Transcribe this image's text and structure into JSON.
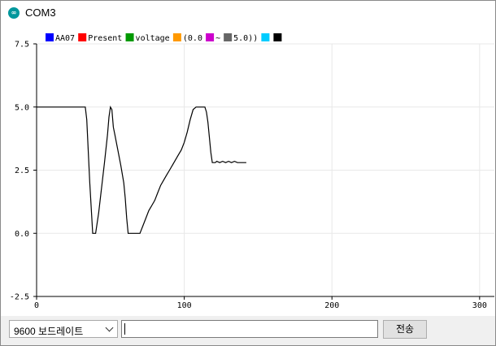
{
  "window": {
    "title": "COM3",
    "icon": "arduino-icon"
  },
  "plot": {
    "legend": [
      {
        "label": "AA07",
        "color": "#0000ff"
      },
      {
        "label": "Present",
        "color": "#ff0000"
      },
      {
        "label": "voltage",
        "color": "#009900"
      },
      {
        "label": "(0.0",
        "color": "#ff9900"
      },
      {
        "label": "~",
        "color": "#cc00cc"
      },
      {
        "label": "5.0))",
        "color": "#666666"
      },
      {
        "label": "",
        "color": "#00ccff"
      },
      {
        "label": "",
        "color": "#000000"
      }
    ],
    "y_ticks": [
      "7.5",
      "5.0",
      "2.5",
      "0.0",
      "-2.5"
    ],
    "x_ticks": [
      "0",
      "100",
      "200",
      "300"
    ]
  },
  "chart_data": {
    "type": "line",
    "xlim": [
      0,
      310
    ],
    "ylim": [
      -2.5,
      7.5
    ],
    "y_ticks": [
      7.5,
      5.0,
      2.5,
      0.0,
      -2.5
    ],
    "x_ticks": [
      0,
      100,
      200,
      300
    ],
    "grid": true,
    "legend_position": "top-left",
    "series": [
      {
        "color": "#000000",
        "x": [
          0,
          33,
          34,
          36,
          38,
          39,
          40,
          42,
          44,
          46,
          48,
          49,
          50,
          51,
          52,
          53,
          55,
          57,
          59,
          60,
          61,
          62,
          63,
          64,
          66,
          68,
          70,
          72,
          74,
          76,
          78,
          80,
          82,
          84,
          86,
          88,
          90,
          92,
          94,
          96,
          98,
          100,
          102,
          104,
          106,
          108,
          110,
          112,
          114,
          115,
          116,
          117,
          118,
          119,
          120,
          121,
          122,
          124,
          126,
          128,
          130,
          132,
          134,
          136,
          138,
          140,
          142
        ],
        "y": [
          5.0,
          5.0,
          4.5,
          2.0,
          0.0,
          0.0,
          0.0,
          0.8,
          1.8,
          2.8,
          3.9,
          4.6,
          5.0,
          4.9,
          4.2,
          3.9,
          3.3,
          2.7,
          2.0,
          1.4,
          0.6,
          0.0,
          0.0,
          0.0,
          0.0,
          0.0,
          0.0,
          0.3,
          0.6,
          0.9,
          1.1,
          1.3,
          1.6,
          1.9,
          2.1,
          2.3,
          2.5,
          2.7,
          2.9,
          3.1,
          3.3,
          3.6,
          4.0,
          4.5,
          4.9,
          5.0,
          5.0,
          5.0,
          5.0,
          4.8,
          4.4,
          3.8,
          3.2,
          2.8,
          2.8,
          2.8,
          2.85,
          2.8,
          2.85,
          2.8,
          2.85,
          2.8,
          2.85,
          2.8,
          2.8,
          2.8,
          2.8
        ]
      }
    ]
  },
  "controls": {
    "baud_value": "9600 보드레이트",
    "input_value": "",
    "send_label": "전송"
  }
}
